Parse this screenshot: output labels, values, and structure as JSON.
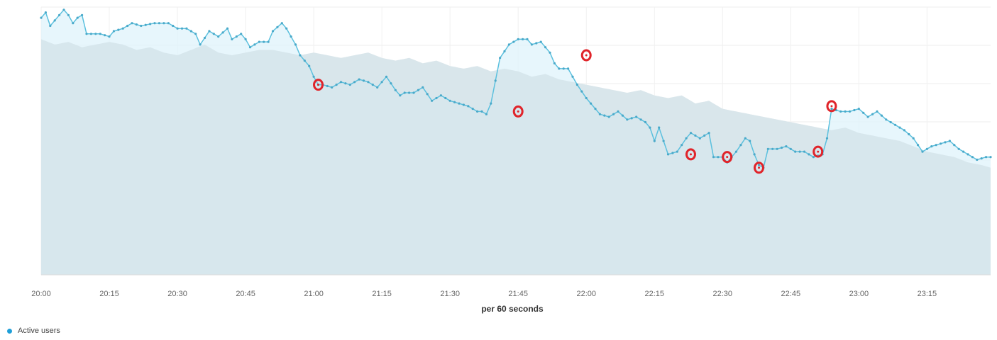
{
  "chart_data": {
    "type": "area",
    "xlabel": "per 60 seconds",
    "x_ticks": [
      "20:00",
      "20:15",
      "20:30",
      "20:45",
      "21:00",
      "21:15",
      "21:30",
      "21:45",
      "22:00",
      "22:15",
      "22:30",
      "22:45",
      "23:00",
      "23:15"
    ],
    "x_range_minutes": [
      0,
      209
    ],
    "y_range": [
      0,
      100
    ],
    "grid": true,
    "legend_position": "bottom-left",
    "series": [
      {
        "name": "Active users",
        "color": "#5bc0de",
        "role": "line-with-markers",
        "anchors": [
          [
            0,
            96
          ],
          [
            1,
            98
          ],
          [
            2,
            93
          ],
          [
            3,
            95
          ],
          [
            4,
            97
          ],
          [
            5,
            99
          ],
          [
            6,
            97
          ],
          [
            7,
            94
          ],
          [
            8,
            96
          ],
          [
            9,
            97
          ],
          [
            10,
            90
          ],
          [
            13,
            90
          ],
          [
            15,
            89
          ],
          [
            16,
            91
          ],
          [
            18,
            92
          ],
          [
            20,
            94
          ],
          [
            22,
            93
          ],
          [
            25,
            94
          ],
          [
            28,
            94
          ],
          [
            30,
            92
          ],
          [
            32,
            92
          ],
          [
            34,
            90
          ],
          [
            35,
            86
          ],
          [
            37,
            91
          ],
          [
            39,
            89
          ],
          [
            41,
            92
          ],
          [
            42,
            88
          ],
          [
            44,
            90
          ],
          [
            45,
            88
          ],
          [
            46,
            85
          ],
          [
            48,
            87
          ],
          [
            50,
            87
          ],
          [
            51,
            91
          ],
          [
            53,
            94
          ],
          [
            54,
            92
          ],
          [
            56,
            86
          ],
          [
            57,
            82
          ],
          [
            59,
            78
          ],
          [
            60,
            74
          ],
          [
            61,
            71
          ],
          [
            62,
            71
          ],
          [
            64,
            70
          ],
          [
            66,
            72
          ],
          [
            68,
            71
          ],
          [
            70,
            73
          ],
          [
            72,
            72
          ],
          [
            74,
            70
          ],
          [
            76,
            74
          ],
          [
            78,
            69
          ],
          [
            79,
            67
          ],
          [
            80,
            68
          ],
          [
            82,
            68
          ],
          [
            84,
            70
          ],
          [
            86,
            65
          ],
          [
            88,
            67
          ],
          [
            90,
            65
          ],
          [
            92,
            64
          ],
          [
            94,
            63
          ],
          [
            96,
            61
          ],
          [
            97,
            61
          ],
          [
            98,
            60
          ],
          [
            99,
            64
          ],
          [
            101,
            81
          ],
          [
            103,
            86
          ],
          [
            105,
            88
          ],
          [
            107,
            88
          ],
          [
            108,
            86
          ],
          [
            110,
            87
          ],
          [
            112,
            83
          ],
          [
            113,
            79
          ],
          [
            114,
            77
          ],
          [
            116,
            77
          ],
          [
            118,
            71
          ],
          [
            120,
            66
          ],
          [
            121,
            64
          ],
          [
            123,
            60
          ],
          [
            125,
            59
          ],
          [
            127,
            61
          ],
          [
            129,
            58
          ],
          [
            131,
            59
          ],
          [
            133,
            57
          ],
          [
            134,
            55
          ],
          [
            135,
            50
          ],
          [
            136,
            55
          ],
          [
            138,
            45
          ],
          [
            140,
            46
          ],
          [
            142,
            51
          ],
          [
            143,
            53
          ],
          [
            145,
            51
          ],
          [
            147,
            53
          ],
          [
            148,
            44
          ],
          [
            150,
            44
          ],
          [
            151,
            42
          ],
          [
            153,
            46
          ],
          [
            155,
            51
          ],
          [
            156,
            50
          ],
          [
            157,
            45
          ],
          [
            158,
            41
          ],
          [
            159,
            40
          ],
          [
            160,
            47
          ],
          [
            162,
            47
          ],
          [
            164,
            48
          ],
          [
            166,
            46
          ],
          [
            168,
            46
          ],
          [
            170,
            44
          ],
          [
            172,
            45
          ],
          [
            173,
            51
          ],
          [
            174,
            62
          ],
          [
            176,
            61
          ],
          [
            178,
            61
          ],
          [
            180,
            62
          ],
          [
            182,
            59
          ],
          [
            184,
            61
          ],
          [
            186,
            58
          ],
          [
            188,
            56
          ],
          [
            190,
            54
          ],
          [
            192,
            51
          ],
          [
            194,
            46
          ],
          [
            196,
            48
          ],
          [
            198,
            49
          ],
          [
            200,
            50
          ],
          [
            202,
            47
          ],
          [
            204,
            45
          ],
          [
            206,
            43
          ],
          [
            208,
            44
          ],
          [
            209,
            44
          ]
        ]
      },
      {
        "name": "",
        "color": "#d9e2e8",
        "role": "comparison-area",
        "anchors": [
          [
            0,
            88
          ],
          [
            3,
            86
          ],
          [
            6,
            87
          ],
          [
            9,
            85
          ],
          [
            12,
            86
          ],
          [
            15,
            87
          ],
          [
            18,
            86
          ],
          [
            21,
            84
          ],
          [
            24,
            85
          ],
          [
            27,
            83
          ],
          [
            30,
            82
          ],
          [
            33,
            84
          ],
          [
            36,
            86
          ],
          [
            39,
            83
          ],
          [
            42,
            82
          ],
          [
            45,
            83
          ],
          [
            48,
            84
          ],
          [
            51,
            84
          ],
          [
            54,
            83
          ],
          [
            57,
            82
          ],
          [
            60,
            83
          ],
          [
            63,
            82
          ],
          [
            66,
            81
          ],
          [
            69,
            82
          ],
          [
            72,
            83
          ],
          [
            75,
            81
          ],
          [
            78,
            80
          ],
          [
            81,
            81
          ],
          [
            84,
            79
          ],
          [
            87,
            80
          ],
          [
            90,
            78
          ],
          [
            93,
            77
          ],
          [
            96,
            78
          ],
          [
            99,
            76
          ],
          [
            102,
            77
          ],
          [
            105,
            76
          ],
          [
            108,
            74
          ],
          [
            111,
            75
          ],
          [
            114,
            73
          ],
          [
            117,
            72
          ],
          [
            120,
            71
          ],
          [
            123,
            70
          ],
          [
            126,
            69
          ],
          [
            129,
            68
          ],
          [
            132,
            69
          ],
          [
            135,
            67
          ],
          [
            138,
            66
          ],
          [
            141,
            67
          ],
          [
            144,
            64
          ],
          [
            147,
            65
          ],
          [
            150,
            62
          ],
          [
            153,
            61
          ],
          [
            156,
            60
          ],
          [
            159,
            59
          ],
          [
            162,
            58
          ],
          [
            165,
            57
          ],
          [
            168,
            56
          ],
          [
            171,
            55
          ],
          [
            174,
            54
          ],
          [
            177,
            55
          ],
          [
            180,
            53
          ],
          [
            183,
            52
          ],
          [
            186,
            51
          ],
          [
            189,
            50
          ],
          [
            192,
            48
          ],
          [
            195,
            46
          ],
          [
            198,
            45
          ],
          [
            201,
            44
          ],
          [
            204,
            42
          ],
          [
            207,
            41
          ],
          [
            209,
            40
          ]
        ]
      }
    ],
    "annotations": [
      {
        "type": "circle-marker",
        "x_minute": 61,
        "y": 71,
        "color": "#e0242a"
      },
      {
        "type": "circle-marker",
        "x_minute": 105,
        "y": 61,
        "color": "#e0242a"
      },
      {
        "type": "circle-marker",
        "x_minute": 120,
        "y": 82,
        "color": "#e0242a"
      },
      {
        "type": "circle-marker",
        "x_minute": 143,
        "y": 45,
        "color": "#e0242a"
      },
      {
        "type": "circle-marker",
        "x_minute": 151,
        "y": 44,
        "color": "#e0242a"
      },
      {
        "type": "circle-marker",
        "x_minute": 158,
        "y": 40,
        "color": "#e0242a"
      },
      {
        "type": "circle-marker",
        "x_minute": 171,
        "y": 46,
        "color": "#e0242a"
      },
      {
        "type": "circle-marker",
        "x_minute": 174,
        "y": 63,
        "color": "#e0242a"
      }
    ]
  },
  "legend": {
    "label": "Active users",
    "color": "#1f9fd8"
  }
}
